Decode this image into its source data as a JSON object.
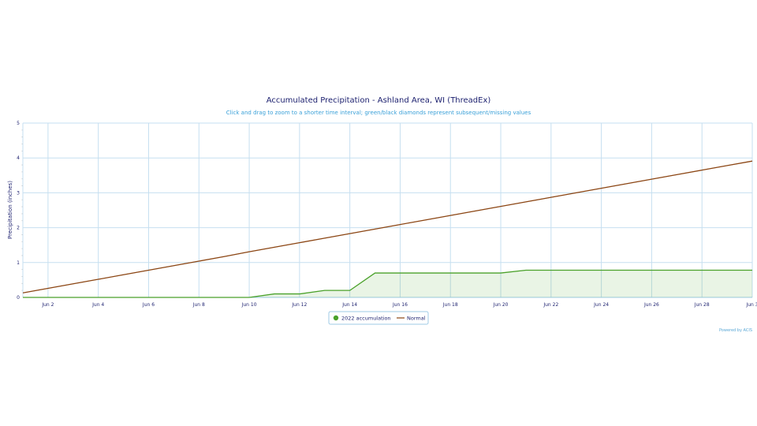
{
  "chart_data": {
    "type": "line",
    "title": "Accumulated Precipitation - Ashland Area, WI (ThreadEx)",
    "subtitle": "Click and drag to zoom to a shorter time interval; green/black diamonds represent subsequent/missing values",
    "ylabel": "Precipitation (inches)",
    "xlabel": "",
    "ylim": [
      0,
      5
    ],
    "xlim": [
      "Jun 1",
      "Jun 30"
    ],
    "grid": true,
    "x_ticks": [
      "Jun 2",
      "Jun 4",
      "Jun 6",
      "Jun 8",
      "Jun 10",
      "Jun 12",
      "Jun 14",
      "Jun 16",
      "Jun 18",
      "Jun 20",
      "Jun 22",
      "Jun 24",
      "Jun 26",
      "Jun 28",
      "Jun 3"
    ],
    "y_ticks": [
      "0",
      "1",
      "2",
      "3",
      "4",
      "5"
    ],
    "legend_placement": "bottom-center",
    "x": [
      "Jun 1",
      "Jun 2",
      "Jun 3",
      "Jun 4",
      "Jun 5",
      "Jun 6",
      "Jun 7",
      "Jun 8",
      "Jun 9",
      "Jun 10",
      "Jun 11",
      "Jun 12",
      "Jun 13",
      "Jun 14",
      "Jun 15",
      "Jun 16",
      "Jun 17",
      "Jun 18",
      "Jun 19",
      "Jun 20",
      "Jun 21",
      "Jun 22",
      "Jun 23",
      "Jun 24",
      "Jun 25",
      "Jun 26",
      "Jun 27",
      "Jun 28",
      "Jun 29",
      "Jun 30"
    ],
    "series": [
      {
        "name": "2022 accumulation",
        "color": "#4aa12a",
        "area": true,
        "values": [
          0,
          0,
          0,
          0,
          0,
          0,
          0,
          0,
          0,
          0,
          0.1,
          0.1,
          0.2,
          0.2,
          0.7,
          0.7,
          0.7,
          0.7,
          0.7,
          0.7,
          0.78,
          0.78,
          0.78,
          0.78,
          0.78,
          0.78,
          0.78,
          0.78,
          0.78,
          0.78
        ]
      },
      {
        "name": "Normal",
        "color": "#8b4513",
        "area": false,
        "values": [
          0.13,
          0.26,
          0.39,
          0.52,
          0.65,
          0.78,
          0.91,
          1.04,
          1.17,
          1.31,
          1.44,
          1.57,
          1.7,
          1.83,
          1.96,
          2.09,
          2.22,
          2.35,
          2.48,
          2.61,
          2.74,
          2.87,
          3.0,
          3.13,
          3.26,
          3.39,
          3.52,
          3.65,
          3.78,
          3.91
        ]
      }
    ],
    "credit": "Powered by ACIS"
  }
}
